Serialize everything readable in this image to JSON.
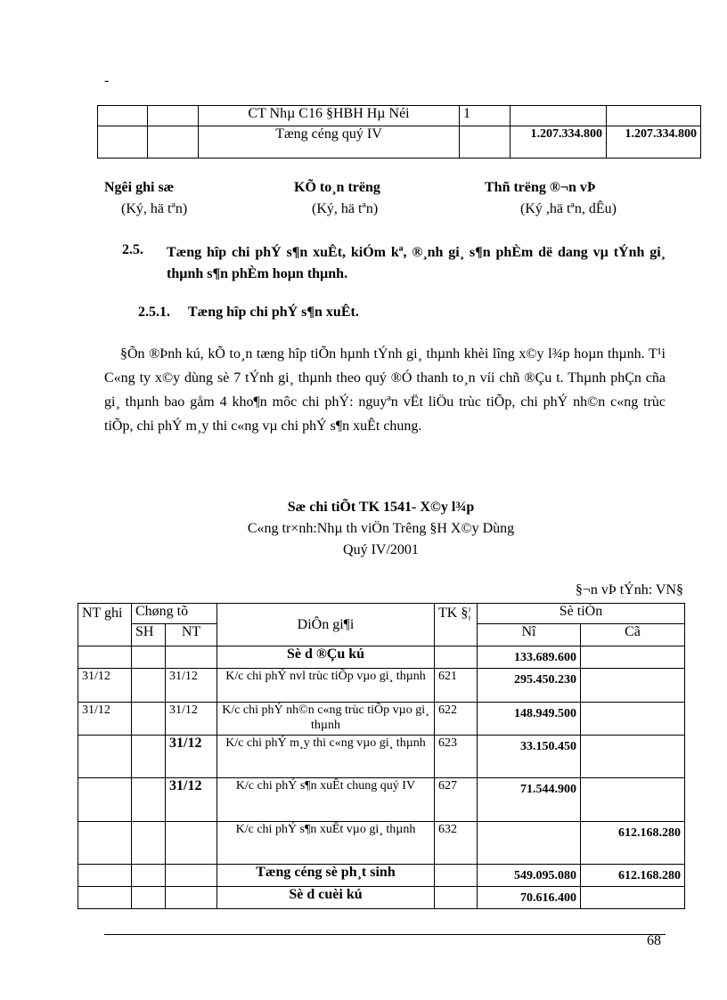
{
  "top_mark": "-",
  "top_table": {
    "rows": [
      {
        "c1": "",
        "c2": "",
        "desc": "CT Nhµ C16 §HBH Hµ Néi",
        "tk": "1",
        "no": "",
        "co": ""
      },
      {
        "c1": "",
        "c2": "",
        "desc": "Tæng céng quý IV",
        "tk": "",
        "no": "1.207.334.800",
        "co": "1.207.334.800"
      }
    ]
  },
  "signatures": [
    {
      "title": "Ng­êi ghi sæ",
      "note": "(Ký, hä tªn)"
    },
    {
      "title": "KÕ to¸n tr­ëng",
      "note": "(Ký, hä tªn)"
    },
    {
      "title": "Thñ tr­ëng ®¬n vÞ",
      "note": "(Ký ,hä tªn, dÊu)"
    }
  ],
  "section_2_5": {
    "number": "2.5.",
    "title": "Tæng hîp chi phÝ s¶n xuÊt, kiÓm kª, ®¸nh gi¸ s¶n phÈm dë dang vµ tÝnh gi¸ thµnh s¶n phÈm hoµn thµnh."
  },
  "section_2_5_1": {
    "number": "2.5.1.",
    "title": "Tæng hîp chi phÝ s¶n xuÊt."
  },
  "paragraph": "§Õn ®Þnh kú, kÕ to¸n tæng hîp tiÕn hµnh tÝnh gi¸ thµnh khèi l­îng x©y l¾p hoµn thµnh. T¹i C«ng ty x©y dùng sè 7 tÝnh gi¸ thµnh theo quý ®Ó thanh to¸n víi chñ ®Çu t­. Thµnh phÇn cña gi¸ thµnh bao gåm 4 kho¶n môc chi phÝ: nguyªn vËt liÖu trùc tiÕp, chi phÝ nh©n c«ng trùc tiÕp, chi phÝ m¸y thi c«ng vµ chi phÝ s¶n xuÊt chung.",
  "ledger": {
    "title": "Sæ chi tiÕt TK 1541- X©y l¾p",
    "project": "C«ng tr×nh:Nhµ th­ viÖn Tr­êng §H X©y Dùng",
    "period": "Quý IV/2001",
    "unit": "§¬n vÞ tÝnh: VN§",
    "headers": {
      "nt_ghi": "NT ghi",
      "chung_tu": "Chøng tõ",
      "sh": "SH",
      "nt": "NT",
      "dien_giai": "DiÔn gi¶i",
      "tk": "TK §¦",
      "so_tien": "Sè tiÒn",
      "no": "Nî",
      "co": "Cã"
    },
    "rows": [
      {
        "nt_ghi": "",
        "sh": "",
        "nt": "",
        "desc": "Sè d­ ®Çu kú",
        "tk": "",
        "no": "133.689.600",
        "co": ""
      },
      {
        "nt_ghi": "31/12",
        "sh": "",
        "nt": "31/12",
        "desc": "K/c chi phÝ nvl trùc tiÕp vµo gi¸ thµnh",
        "tk": "621",
        "no": "295.450.230",
        "co": ""
      },
      {
        "nt_ghi": "31/12",
        "sh": "",
        "nt": "31/12",
        "desc": "K/c chi phÝ nh©n c«ng trùc tiÕp vµo gi¸ thµnh",
        "tk": "622",
        "no": "148.949.500",
        "co": ""
      },
      {
        "nt_ghi": "",
        "sh": "",
        "nt": "31/12",
        "desc": "K/c chi phÝ m¸y thi c«ng vµo gi¸ thµnh",
        "tk": "623",
        "no": "33.150.450",
        "co": ""
      },
      {
        "nt_ghi": "",
        "sh": "",
        "nt": "31/12",
        "desc": "K/c chi phÝ s¶n xuÊt chung quý IV",
        "tk": "627",
        "no": "71.544.900",
        "co": ""
      },
      {
        "nt_ghi": "",
        "sh": "",
        "nt": "",
        "desc": "K/c chi phÝ s¶n xuÊt vµo gi¸ thµnh",
        "tk": "632",
        "no": "",
        "co": "612.168.280"
      },
      {
        "nt_ghi": "",
        "sh": "",
        "nt": "",
        "desc": "Tæng céng sè ph¸t sinh",
        "tk": "",
        "no": "549.095.080",
        "co": "612.168.280"
      },
      {
        "nt_ghi": "",
        "sh": "",
        "nt": "",
        "desc": "Sè d­ cuèi kú",
        "tk": "",
        "no": "70.616.400",
        "co": ""
      }
    ]
  },
  "page_number": "68"
}
